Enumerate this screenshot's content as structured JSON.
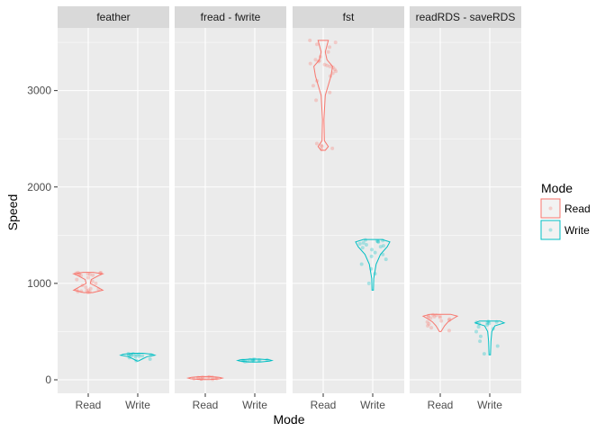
{
  "chart_data": {
    "type": "violin",
    "xlabel": "Mode",
    "ylabel": "Speed",
    "ylim": [
      -140,
      3650
    ],
    "yticks": [
      0,
      1000,
      2000,
      3000
    ],
    "categories": [
      "Read",
      "Write"
    ],
    "legend": {
      "title": "Mode",
      "placement": "right",
      "entries": [
        {
          "label": "Read",
          "color": "#F8766D"
        },
        {
          "label": "Write",
          "color": "#00BFC4"
        }
      ]
    },
    "facets": [
      {
        "name": "feather",
        "read": {
          "profile": [
            [
              905,
              0.25
            ],
            [
              930,
              0.85
            ],
            [
              960,
              0.55
            ],
            [
              1000,
              0.12
            ],
            [
              1040,
              0.18
            ],
            [
              1080,
              0.6
            ],
            [
              1100,
              0.85
            ],
            [
              1115,
              0.3
            ]
          ],
          "points": [
            905,
            910,
            915,
            920,
            925,
            930,
            935,
            940,
            945,
            960,
            980,
            1000,
            1020,
            1040,
            1060,
            1080,
            1085,
            1090,
            1095,
            1100,
            1100,
            1105,
            1108,
            1110,
            1112
          ]
        },
        "write": {
          "profile": [
            [
              195,
              0.05
            ],
            [
              215,
              0.25
            ],
            [
              240,
              0.55
            ],
            [
              255,
              1.0
            ],
            [
              265,
              0.85
            ],
            [
              275,
              0.3
            ]
          ],
          "points": [
            200,
            215,
            230,
            240,
            245,
            250,
            252,
            255,
            258,
            260,
            262,
            265,
            268,
            270
          ]
        }
      },
      {
        "name": "fread - fwrite",
        "read": {
          "profile": [
            [
              2,
              0.25
            ],
            [
              10,
              0.85
            ],
            [
              18,
              1.0
            ],
            [
              26,
              0.8
            ],
            [
              34,
              0.25
            ]
          ],
          "points": [
            5,
            8,
            10,
            12,
            14,
            16,
            18,
            20,
            22,
            24,
            26,
            28,
            30
          ]
        },
        "write": {
          "profile": [
            [
              185,
              0.3
            ],
            [
              193,
              0.85
            ],
            [
              200,
              1.0
            ],
            [
              207,
              0.85
            ],
            [
              215,
              0.3
            ]
          ],
          "points": [
            188,
            192,
            195,
            198,
            200,
            200,
            202,
            204,
            206,
            208,
            210,
            212
          ]
        }
      },
      {
        "name": "fst",
        "read": {
          "profile": [
            [
              2380,
              0.12
            ],
            [
              2420,
              0.3
            ],
            [
              2480,
              0.07
            ],
            [
              2700,
              0.04
            ],
            [
              2950,
              0.12
            ],
            [
              3150,
              0.45
            ],
            [
              3250,
              0.55
            ],
            [
              3320,
              0.22
            ],
            [
              3400,
              0.12
            ],
            [
              3520,
              0.3
            ]
          ],
          "points": [
            2390,
            2400,
            2420,
            2430,
            2450,
            2900,
            2980,
            3050,
            3100,
            3150,
            3180,
            3200,
            3220,
            3240,
            3250,
            3260,
            3270,
            3280,
            3300,
            3310,
            3320,
            3350,
            3400,
            3450,
            3480,
            3500,
            3520
          ]
        },
        "write": {
          "profile": [
            [
              930,
              0.04
            ],
            [
              1050,
              0.06
            ],
            [
              1200,
              0.2
            ],
            [
              1300,
              0.45
            ],
            [
              1380,
              0.85
            ],
            [
              1430,
              1.0
            ],
            [
              1455,
              0.55
            ]
          ],
          "points": [
            1000,
            1100,
            1150,
            1200,
            1250,
            1280,
            1300,
            1320,
            1350,
            1370,
            1380,
            1390,
            1400,
            1410,
            1420,
            1430,
            1435,
            1440,
            1445,
            1450
          ]
        }
      },
      {
        "name": "readRDS - saveRDS",
        "read": {
          "profile": [
            [
              500,
              0.05
            ],
            [
              560,
              0.25
            ],
            [
              600,
              0.45
            ],
            [
              635,
              0.75
            ],
            [
              660,
              1.0
            ],
            [
              680,
              0.6
            ]
          ],
          "points": [
            510,
            540,
            560,
            580,
            600,
            610,
            620,
            630,
            640,
            645,
            650,
            655,
            660,
            665,
            670,
            675
          ]
        },
        "write": {
          "profile": [
            [
              260,
              0.04
            ],
            [
              400,
              0.07
            ],
            [
              500,
              0.12
            ],
            [
              560,
              0.3
            ],
            [
              590,
              0.85
            ],
            [
              610,
              0.6
            ]
          ],
          "points": [
            270,
            350,
            400,
            450,
            500,
            530,
            550,
            570,
            580,
            585,
            590,
            595,
            600,
            605
          ]
        }
      }
    ]
  }
}
